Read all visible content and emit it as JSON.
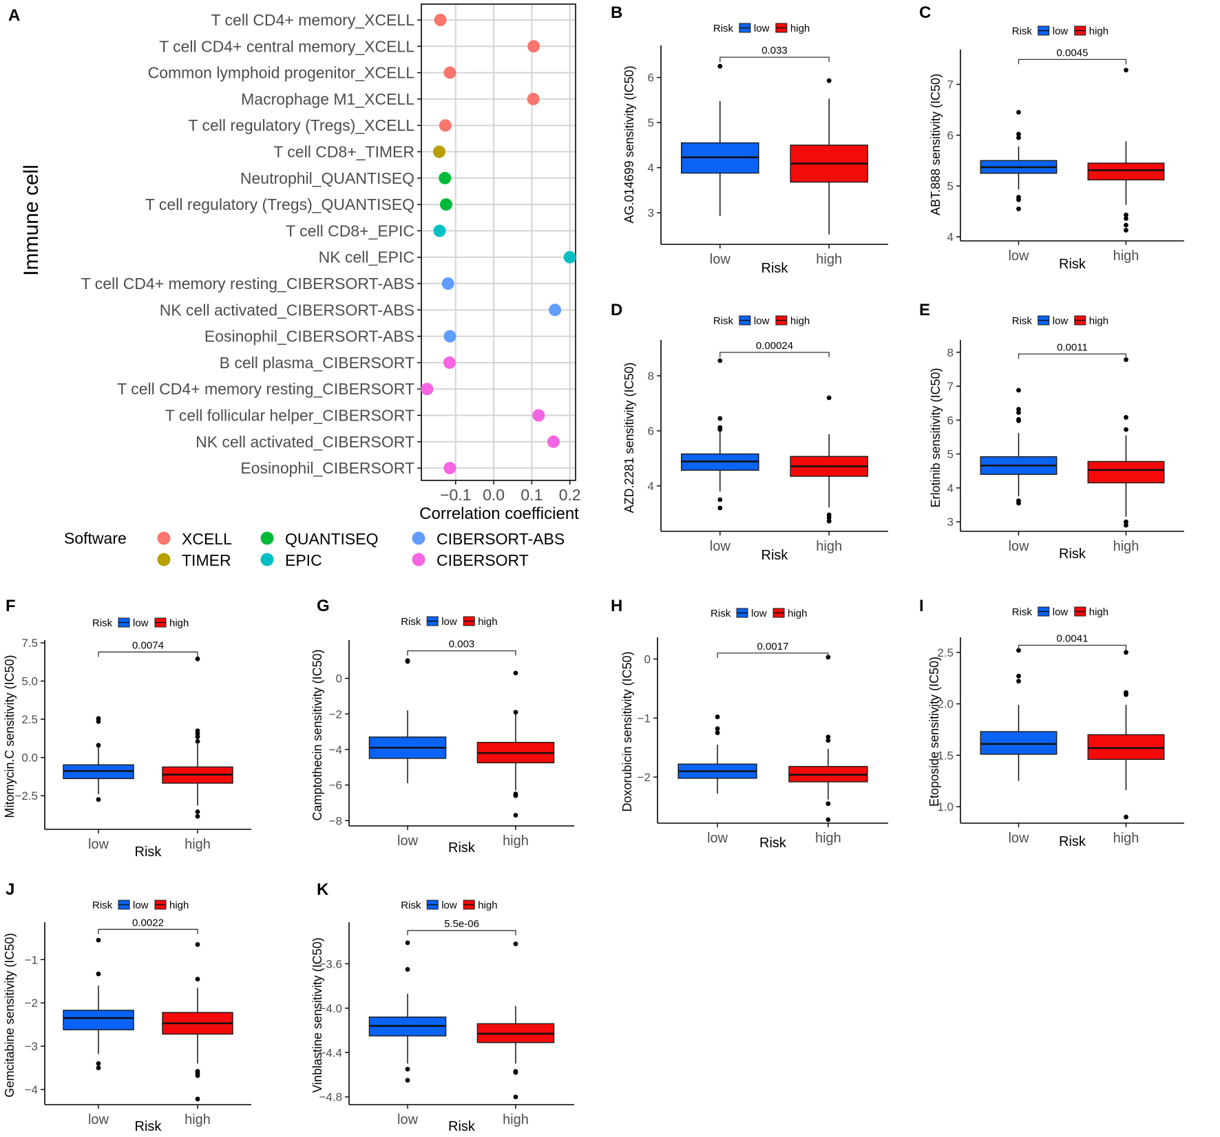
{
  "colors": {
    "XCELL": "#F8766D",
    "TIMER": "#B79F00",
    "QUANTISEQ": "#00BA38",
    "EPIC": "#00BFC4",
    "CIBERSORT-ABS": "#619CFF",
    "CIBERSORT": "#F564E3",
    "low": "#0A63F5",
    "high": "#F50A0A"
  },
  "chart_data": [
    {
      "panel": "A",
      "type": "scatter",
      "title": "",
      "ylabel": "Immune cell",
      "xlabel": "Correlation coefficient",
      "xlim": [
        -0.19,
        0.215
      ],
      "xticks": [
        -0.1,
        0.0,
        0.1,
        0.2
      ],
      "xtick_labels": [
        "-0.1",
        "0.0",
        "0.1",
        "0.2"
      ],
      "grid": true,
      "legend_title": "Software",
      "legend_items": [
        "XCELL",
        "TIMER",
        "QUANTISEQ",
        "EPIC",
        "CIBERSORT-ABS",
        "CIBERSORT"
      ],
      "points": [
        {
          "label": "T cell CD4+ memory_XCELL",
          "value": -0.14,
          "software": "XCELL"
        },
        {
          "label": "T cell CD4+ central memory_XCELL",
          "value": 0.105,
          "software": "XCELL"
        },
        {
          "label": "Common lymphoid progenitor_XCELL",
          "value": -0.115,
          "software": "XCELL"
        },
        {
          "label": "Macrophage M1_XCELL",
          "value": 0.104,
          "software": "XCELL"
        },
        {
          "label": "T cell regulatory (Tregs)_XCELL",
          "value": -0.127,
          "software": "XCELL"
        },
        {
          "label": "T cell CD8+_TIMER",
          "value": -0.143,
          "software": "TIMER"
        },
        {
          "label": "Neutrophil_QUANTISEQ",
          "value": -0.128,
          "software": "QUANTISEQ"
        },
        {
          "label": "T cell regulatory (Tregs)_QUANTISEQ",
          "value": -0.125,
          "software": "QUANTISEQ"
        },
        {
          "label": "T cell CD8+_EPIC",
          "value": -0.142,
          "software": "EPIC"
        },
        {
          "label": "NK cell_EPIC",
          "value": 0.2,
          "software": "EPIC"
        },
        {
          "label": "T cell CD4+ memory resting_CIBERSORT-ABS",
          "value": -0.12,
          "software": "CIBERSORT-ABS"
        },
        {
          "label": "NK cell activated_CIBERSORT-ABS",
          "value": 0.161,
          "software": "CIBERSORT-ABS"
        },
        {
          "label": "Eosinophil_CIBERSORT-ABS",
          "value": -0.115,
          "software": "CIBERSORT-ABS"
        },
        {
          "label": "B cell plasma_CIBERSORT",
          "value": -0.116,
          "software": "CIBERSORT"
        },
        {
          "label": "T cell CD4+ memory resting_CIBERSORT",
          "value": -0.175,
          "software": "CIBERSORT"
        },
        {
          "label": "T cell follicular helper_CIBERSORT",
          "value": 0.118,
          "software": "CIBERSORT"
        },
        {
          "label": "NK cell activated_CIBERSORT",
          "value": 0.157,
          "software": "CIBERSORT"
        },
        {
          "label": "Eosinophil_CIBERSORT",
          "value": -0.115,
          "software": "CIBERSORT"
        }
      ]
    },
    {
      "panel": "B",
      "type": "box",
      "ylabel": "AG.014699 sensitivity (IC50)",
      "xlabel": "Risk",
      "legend_title": "Risk",
      "categories": [
        "low",
        "high"
      ],
      "ylim": [
        2.3,
        6.65
      ],
      "yticks": [
        3,
        4,
        5,
        6
      ],
      "ytick_labels": [
        "3",
        "4",
        "5",
        "6"
      ],
      "pvalue": "0.033",
      "bracket_y": 6.45,
      "series": [
        {
          "name": "low",
          "q1": 3.88,
          "median": 4.23,
          "q3": 4.55,
          "whisker_low": 2.93,
          "whisker_high": 5.48,
          "outliers": [
            6.25
          ]
        },
        {
          "name": "high",
          "q1": 3.68,
          "median": 4.09,
          "q3": 4.5,
          "whisker_low": 2.52,
          "whisker_high": 5.53,
          "outliers": [
            5.93
          ]
        }
      ]
    },
    {
      "panel": "C",
      "type": "box",
      "ylabel": "ABT.888 sensitivity (IC50)",
      "xlabel": "Risk",
      "legend_title": "Risk",
      "categories": [
        "low",
        "high"
      ],
      "ylim": [
        3.92,
        7.63
      ],
      "yticks": [
        4,
        5,
        6,
        7
      ],
      "ytick_labels": [
        "4",
        "5",
        "6",
        "7"
      ],
      "pvalue": "0.0045",
      "bracket_y": 7.49,
      "series": [
        {
          "name": "low",
          "q1": 5.25,
          "median": 5.37,
          "q3": 5.5,
          "whisker_low": 4.93,
          "whisker_high": 5.78,
          "outliers": [
            6.45,
            6.02,
            5.95,
            4.78,
            4.73,
            4.55
          ]
        },
        {
          "name": "high",
          "q1": 5.12,
          "median": 5.31,
          "q3": 5.45,
          "whisker_low": 4.63,
          "whisker_high": 5.88,
          "outliers": [
            7.28,
            4.43,
            4.36,
            4.23,
            4.13
          ]
        }
      ]
    },
    {
      "panel": "D",
      "type": "box",
      "ylabel": "AZD.2281 sensitivity (IC50)",
      "xlabel": "Risk",
      "legend_title": "Risk",
      "categories": [
        "low",
        "high"
      ],
      "ylim": [
        2.35,
        9.2
      ],
      "yticks": [
        4,
        6,
        8
      ],
      "ytick_labels": [
        "4",
        "6",
        "8"
      ],
      "pvalue": "0.00024",
      "bracket_y": 8.85,
      "series": [
        {
          "name": "low",
          "q1": 4.57,
          "median": 4.89,
          "q3": 5.16,
          "whisker_low": 3.8,
          "whisker_high": 6.0,
          "outliers": [
            8.55,
            6.45,
            6.12,
            6.05,
            3.5,
            3.2
          ]
        },
        {
          "name": "high",
          "q1": 4.35,
          "median": 4.71,
          "q3": 5.07,
          "whisker_low": 3.22,
          "whisker_high": 5.88,
          "outliers": [
            7.2,
            2.95,
            2.85,
            2.72
          ]
        }
      ]
    },
    {
      "panel": "E",
      "type": "box",
      "ylabel": "Erlotinib sensitivity (IC50)",
      "xlabel": "Risk",
      "legend_title": "Risk",
      "categories": [
        "low",
        "high"
      ],
      "ylim": [
        2.72,
        8.28
      ],
      "yticks": [
        3,
        4,
        5,
        6,
        7,
        8
      ],
      "ytick_labels": [
        "3",
        "4",
        "5",
        "6",
        "7",
        "8"
      ],
      "pvalue": "0.0011",
      "bracket_y": 7.95,
      "series": [
        {
          "name": "low",
          "q1": 4.4,
          "median": 4.66,
          "q3": 4.92,
          "whisker_low": 3.75,
          "whisker_high": 5.62,
          "outliers": [
            6.88,
            6.32,
            6.22,
            6.02,
            5.98,
            3.62,
            3.55
          ]
        },
        {
          "name": "high",
          "q1": 4.15,
          "median": 4.53,
          "q3": 4.78,
          "whisker_low": 3.15,
          "whisker_high": 5.55,
          "outliers": [
            7.78,
            6.08,
            5.72,
            3.0,
            2.9
          ]
        }
      ]
    },
    {
      "panel": "F",
      "type": "box",
      "ylabel": "Mitomycin.C sensitivity (IC50)",
      "xlabel": "Risk",
      "legend_title": "Risk",
      "categories": [
        "low",
        "high"
      ],
      "ylim": [
        -4.7,
        7.5
      ],
      "yticks": [
        -2.5,
        0.0,
        2.5,
        5.0,
        7.5
      ],
      "ytick_labels": [
        "-2.5",
        "0.0",
        "2.5",
        "5.0",
        "7.5"
      ],
      "pvalue": "0.0074",
      "bracket_y": 6.9,
      "series": [
        {
          "name": "low",
          "q1": -1.38,
          "median": -0.88,
          "q3": -0.48,
          "whisker_low": -2.4,
          "whisker_high": 0.75,
          "outliers": [
            2.55,
            2.35,
            0.8,
            -2.75
          ]
        },
        {
          "name": "high",
          "q1": -1.68,
          "median": -1.12,
          "q3": -0.62,
          "whisker_low": -3.15,
          "whisker_high": 0.88,
          "outliers": [
            6.45,
            1.75,
            1.55,
            1.35,
            1.05,
            -3.55,
            -3.85
          ]
        }
      ]
    },
    {
      "panel": "G",
      "type": "box",
      "ylabel": "Camptothecin sensitivity (IC50)",
      "xlabel": "Risk",
      "legend_title": "Risk",
      "categories": [
        "low",
        "high"
      ],
      "ylim": [
        -8.3,
        2.0
      ],
      "yticks": [
        -8,
        -6,
        -4,
        -2,
        0
      ],
      "ytick_labels": [
        "-8",
        "-6",
        "-4",
        "-2",
        "0"
      ],
      "pvalue": "0.003",
      "bracket_y": 1.55,
      "series": [
        {
          "name": "low",
          "q1": -4.5,
          "median": -3.9,
          "q3": -3.3,
          "whisker_low": -5.9,
          "whisker_high": -1.8,
          "outliers": [
            1.0,
            0.95
          ]
        },
        {
          "name": "high",
          "q1": -4.75,
          "median": -4.2,
          "q3": -3.6,
          "whisker_low": -6.3,
          "whisker_high": -1.95,
          "outliers": [
            0.3,
            -1.9,
            -6.5,
            -6.6,
            -7.7
          ]
        }
      ]
    },
    {
      "panel": "H",
      "type": "box",
      "ylabel": "Doxorubicin sensitivity (IC50)",
      "xlabel": "Risk",
      "legend_title": "Risk",
      "categories": [
        "low",
        "high"
      ],
      "ylim": [
        -2.78,
        0.32
      ],
      "yticks": [
        -2,
        -1,
        0
      ],
      "ytick_labels": [
        "-2",
        "-1",
        "0"
      ],
      "pvalue": "0.0017",
      "bracket_y": 0.1,
      "series": [
        {
          "name": "low",
          "q1": -2.02,
          "median": -1.9,
          "q3": -1.78,
          "whisker_low": -2.28,
          "whisker_high": -1.45,
          "outliers": [
            -0.98,
            -1.18,
            -1.25
          ]
        },
        {
          "name": "high",
          "q1": -2.08,
          "median": -1.96,
          "q3": -1.82,
          "whisker_low": -2.38,
          "whisker_high": -1.52,
          "outliers": [
            0.03,
            -1.32,
            -1.38,
            -2.45,
            -2.72
          ]
        }
      ]
    },
    {
      "panel": "I",
      "type": "box",
      "ylabel": "Etoposide sensitivity (IC50)",
      "xlabel": "Risk",
      "legend_title": "Risk",
      "categories": [
        "low",
        "high"
      ],
      "ylim": [
        0.84,
        2.62
      ],
      "yticks": [
        1.0,
        1.5,
        2.0,
        2.5
      ],
      "ytick_labels": [
        "1.0",
        "1.5",
        "2.0",
        "2.5"
      ],
      "pvalue": "0.0041",
      "bracket_y": 2.57,
      "series": [
        {
          "name": "low",
          "q1": 1.51,
          "median": 1.61,
          "q3": 1.73,
          "whisker_low": 1.25,
          "whisker_high": 1.99,
          "outliers": [
            2.52,
            2.27,
            2.22
          ]
        },
        {
          "name": "high",
          "q1": 1.46,
          "median": 1.57,
          "q3": 1.7,
          "whisker_low": 1.16,
          "whisker_high": 1.99,
          "outliers": [
            2.5,
            2.11,
            2.09,
            0.9
          ]
        }
      ]
    },
    {
      "panel": "J",
      "type": "box",
      "ylabel": "Gemcitabine sensitivity (IC50)",
      "xlabel": "Risk",
      "legend_title": "Risk",
      "categories": [
        "low",
        "high"
      ],
      "ylim": [
        -4.35,
        -0.2
      ],
      "yticks": [
        -4,
        -3,
        -2,
        -1
      ],
      "ytick_labels": [
        "-4",
        "-3",
        "-2",
        "-1"
      ],
      "pvalue": "0.0022",
      "bracket_y": -0.3,
      "series": [
        {
          "name": "low",
          "q1": -2.62,
          "median": -2.35,
          "q3": -2.17,
          "whisker_low": -3.18,
          "whisker_high": -1.6,
          "outliers": [
            -0.55,
            -1.33,
            -3.4,
            -3.5
          ]
        },
        {
          "name": "high",
          "q1": -2.72,
          "median": -2.47,
          "q3": -2.22,
          "whisker_low": -3.4,
          "whisker_high": -1.65,
          "outliers": [
            -0.65,
            -1.45,
            -3.58,
            -3.63,
            -3.68,
            -4.22
          ]
        }
      ]
    },
    {
      "panel": "K",
      "type": "box",
      "ylabel": "Vinblastine sensitivity (IC50)",
      "xlabel": "Risk",
      "legend_title": "Risk",
      "categories": [
        "low",
        "high"
      ],
      "ylim": [
        -4.87,
        -3.25
      ],
      "yticks": [
        -4.8,
        -4.4,
        -4.0,
        -3.6
      ],
      "ytick_labels": [
        "-4.8",
        "-4.4",
        "-4.0",
        "-3.6"
      ],
      "pvalue": "5.5e-06",
      "bracket_y": -3.3,
      "series": [
        {
          "name": "low",
          "q1": -4.25,
          "median": -4.16,
          "q3": -4.08,
          "whisker_low": -4.5,
          "whisker_high": -3.87,
          "outliers": [
            -3.41,
            -3.65,
            -4.55,
            -4.65
          ]
        },
        {
          "name": "high",
          "q1": -4.31,
          "median": -4.23,
          "q3": -4.14,
          "whisker_low": -4.5,
          "whisker_high": -3.98,
          "outliers": [
            -3.42,
            -4.57,
            -4.58,
            -4.8
          ]
        }
      ]
    }
  ]
}
